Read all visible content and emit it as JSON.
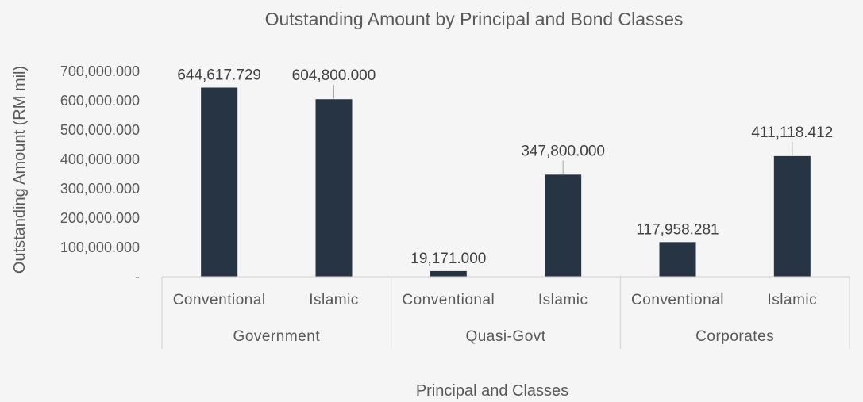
{
  "chart_data": {
    "type": "bar",
    "title": "Outstanding Amount by Principal and Bond Classes",
    "xlabel": "Principal and Classes",
    "ylabel": "Outstanding Amount (RM mil)",
    "ylim": [
      0,
      700000
    ],
    "yticks": [
      {
        "value": 0,
        "label": "-"
      },
      {
        "value": 100000,
        "label": "100,000.000"
      },
      {
        "value": 200000,
        "label": "200,000.000"
      },
      {
        "value": 300000,
        "label": "300,000.000"
      },
      {
        "value": 400000,
        "label": "400,000.000"
      },
      {
        "value": 500000,
        "label": "500,000.000"
      },
      {
        "value": 600000,
        "label": "600,000.000"
      },
      {
        "value": 700000,
        "label": "700,000.000"
      }
    ],
    "groups": [
      {
        "name": "Government",
        "categories": [
          {
            "name": "Conventional",
            "value": 644617.729,
            "label": "644,617.729"
          },
          {
            "name": "Islamic",
            "value": 604800.0,
            "label": "604,800.000"
          }
        ]
      },
      {
        "name": "Quasi-Govt",
        "categories": [
          {
            "name": "Conventional",
            "value": 19171.0,
            "label": "19,171.000"
          },
          {
            "name": "Islamic",
            "value": 347800.0,
            "label": "347,800.000"
          }
        ]
      },
      {
        "name": "Corporates",
        "categories": [
          {
            "name": "Conventional",
            "value": 117958.281,
            "label": "117,958.281"
          },
          {
            "name": "Islamic",
            "value": 411118.412,
            "label": "411,118.412"
          }
        ]
      }
    ],
    "bar_color": "#263443",
    "grid": false,
    "legend": "none"
  }
}
